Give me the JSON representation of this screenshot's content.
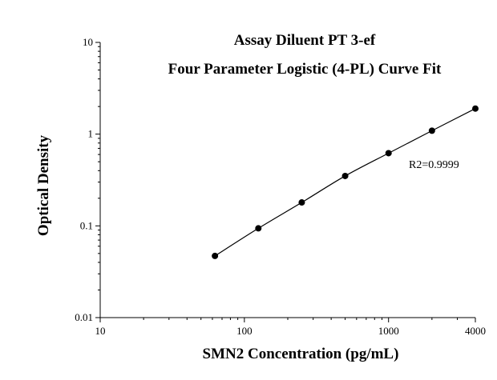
{
  "chart_data": {
    "type": "scatter",
    "title": "Assay Diluent PT 3-ef",
    "subtitle": "Four Parameter Logistic (4-PL) Curve Fit",
    "xlabel": "SMN2 Concentration (pg/mL)",
    "ylabel": "Optical Density",
    "xscale": "log",
    "yscale": "log",
    "xlim": [
      10,
      4000
    ],
    "ylim": [
      0.01,
      10
    ],
    "x_ticks": [
      10,
      100,
      1000,
      4000
    ],
    "x_tick_labels": [
      "10",
      "100",
      "1000",
      "4000"
    ],
    "y_ticks": [
      0.01,
      0.1,
      1,
      10
    ],
    "y_tick_labels": [
      "0.01",
      "0.1",
      "1",
      "10"
    ],
    "grid": false,
    "legend": "none",
    "annotation": "R2=0.9999",
    "point_color": "#000000",
    "line_color": "#000000",
    "series": [
      {
        "x": [
          62.5,
          125,
          250,
          500,
          1000,
          2000,
          4000
        ],
        "y": [
          0.047,
          0.094,
          0.18,
          0.35,
          0.62,
          1.09,
          1.9
        ]
      }
    ]
  }
}
